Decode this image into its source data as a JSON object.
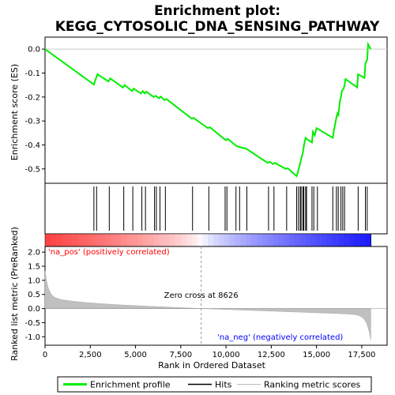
{
  "chart_data": {
    "type": "line",
    "title": "Enrichment plot:\nKEGG_CYTOSOLIC_DNA_SENSING_PATHWAY",
    "title_lines": [
      "Enrichment plot:",
      "KEGG_CYTOSOLIC_DNA_SENSING_PATHWAY"
    ],
    "top_panel": {
      "ylabel": "Enrichment score (ES)",
      "ylim": [
        -0.56,
        0.05
      ],
      "yticks": [
        0.0,
        -0.1,
        -0.2,
        -0.3,
        -0.4,
        -0.5
      ],
      "ytick_labels": [
        "0.0",
        "-0.1",
        "-0.2",
        "-0.3",
        "-0.4",
        "-0.5"
      ],
      "series": [
        {
          "name": "Enrichment profile",
          "color": "#00ee00",
          "x": [
            0,
            2700,
            2800,
            2900,
            3500,
            3600,
            4300,
            4400,
            4800,
            4900,
            5300,
            5400,
            5500,
            5600,
            6000,
            6100,
            6300,
            6400,
            6600,
            6700,
            8100,
            8200,
            9000,
            9100,
            9900,
            10000,
            10100,
            10500,
            10600,
            10800,
            11100,
            11200,
            12300,
            12400,
            12600,
            12700,
            13300,
            13400,
            13900,
            13950,
            14000,
            14050,
            14100,
            14150,
            14200,
            14250,
            14300,
            14350,
            14400,
            14450,
            14750,
            14800,
            14900,
            15000,
            15900,
            15950,
            16050,
            16100,
            16150,
            16200,
            16300,
            16350,
            16400,
            16500,
            16550,
            16600,
            17250,
            17300,
            17650,
            17700,
            17800,
            17850,
            18000
          ],
          "y": [
            0.0,
            -0.148,
            -0.125,
            -0.105,
            -0.135,
            -0.122,
            -0.16,
            -0.15,
            -0.175,
            -0.165,
            -0.185,
            -0.175,
            -0.185,
            -0.178,
            -0.2,
            -0.195,
            -0.205,
            -0.198,
            -0.213,
            -0.208,
            -0.29,
            -0.287,
            -0.33,
            -0.326,
            -0.375,
            -0.38,
            -0.375,
            -0.4,
            -0.405,
            -0.41,
            -0.415,
            -0.42,
            -0.475,
            -0.47,
            -0.48,
            -0.475,
            -0.5,
            -0.497,
            -0.53,
            -0.52,
            -0.505,
            -0.49,
            -0.475,
            -0.46,
            -0.445,
            -0.43,
            -0.405,
            -0.385,
            -0.37,
            -0.375,
            -0.39,
            -0.345,
            -0.36,
            -0.33,
            -0.37,
            -0.345,
            -0.305,
            -0.285,
            -0.27,
            -0.28,
            -0.215,
            -0.2,
            -0.175,
            -0.165,
            -0.15,
            -0.125,
            -0.16,
            -0.105,
            -0.12,
            -0.06,
            -0.045,
            0.02,
            0.0
          ]
        }
      ],
      "hits": [
        2700,
        2850,
        3550,
        4350,
        4850,
        5350,
        5550,
        6050,
        6150,
        6350,
        6650,
        8150,
        9050,
        9950,
        10050,
        10550,
        10750,
        11150,
        12350,
        12650,
        13350,
        13900,
        14000,
        14100,
        14150,
        14250,
        14300,
        14400,
        14450,
        14750,
        14850,
        15050,
        15900,
        16100,
        16200,
        16350,
        16450,
        16550,
        17300,
        17700,
        17800
      ]
    },
    "rank_panel": {
      "ylabel": "Ranked list metric (PreRanked)",
      "xlabel": "Rank in Ordered Dataset",
      "xlim": [
        0,
        18900
      ],
      "xticks": [
        0,
        2500,
        5000,
        7500,
        10000,
        12500,
        15000,
        17500
      ],
      "xtick_labels": [
        "0",
        "2,500",
        "5,000",
        "7,500",
        "10,000",
        "12,500",
        "15,000",
        "17,500"
      ],
      "ylim": [
        -1.3,
        2.2
      ],
      "yticks": [
        2.0,
        1.5,
        1.0,
        0.5,
        0.0,
        -0.5,
        -1.0
      ],
      "ytick_labels": [
        "2.0",
        "1.5",
        "1.0",
        "0.5",
        "0.0",
        "-0.5",
        "-1.0"
      ],
      "zero_cross": 8626,
      "zero_cross_label": "Zero cross at 8626",
      "pos_label": "'na_pos' (positively correlated)",
      "neg_label": "'na_neg' (negatively correlated)",
      "total_ranks": 18000
    },
    "legend": {
      "placement": "bottom",
      "entries": [
        {
          "label": "Enrichment profile",
          "color": "#00ee00"
        },
        {
          "label": "Hits",
          "color": "#000000"
        },
        {
          "label": "Ranking metric scores",
          "color": "#bbbbbb"
        }
      ]
    },
    "colors": {
      "profile": "#00ee00",
      "pos": "#ff0000",
      "neg": "#0000ff",
      "metric_fill": "#c0c0c0",
      "pos_text": "#ff0000",
      "neg_text": "#0000ff"
    }
  }
}
